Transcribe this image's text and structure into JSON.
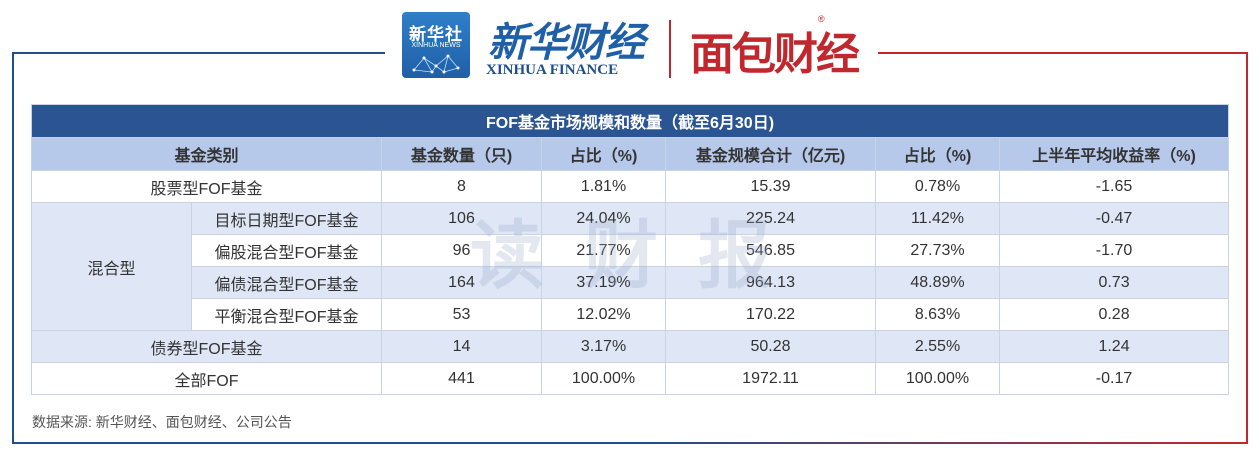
{
  "branding": {
    "xinhua_box_cn": "新华社",
    "xinhua_box_en": "XINHUA NEWS",
    "xinhua_finance_cn": "新华财经",
    "xinhua_finance_en": "XINHUA FINANCE",
    "mianbao_cn": "面包财经",
    "mianbao_reg": "®",
    "watermark": "读财报"
  },
  "colors": {
    "title_bg": "#2b5592",
    "header_bg": "#b7c9ea",
    "row_alt_bg": "#dfe7f6",
    "frame_blue": "#1f4e8c",
    "frame_red": "#c0282d"
  },
  "chart_data": {
    "type": "table",
    "title": "FOF基金市场规模和数量（截至6月30日)",
    "columns": [
      "基金类别",
      "基金数量（只)",
      "占比（%)",
      "基金规模合计（亿元)",
      "占比（%)",
      "上半年平均收益率（%)"
    ],
    "rows": [
      {
        "category": "股票型FOF基金",
        "count": "8",
        "count_pct": "1.81%",
        "scale": "15.39",
        "scale_pct": "0.78%",
        "return": "-1.65"
      },
      {
        "group": "混合型",
        "category": "目标日期型FOF基金",
        "count": "106",
        "count_pct": "24.04%",
        "scale": "225.24",
        "scale_pct": "11.42%",
        "return": "-0.47"
      },
      {
        "group": "混合型",
        "category": "偏股混合型FOF基金",
        "count": "96",
        "count_pct": "21.77%",
        "scale": "546.85",
        "scale_pct": "27.73%",
        "return": "-1.70"
      },
      {
        "group": "混合型",
        "category": "偏债混合型FOF基金",
        "count": "164",
        "count_pct": "37.19%",
        "scale": "964.13",
        "scale_pct": "48.89%",
        "return": "0.73"
      },
      {
        "group": "混合型",
        "category": "平衡混合型FOF基金",
        "count": "53",
        "count_pct": "12.02%",
        "scale": "170.22",
        "scale_pct": "8.63%",
        "return": "0.28"
      },
      {
        "category": "债券型FOF基金",
        "count": "14",
        "count_pct": "3.17%",
        "scale": "50.28",
        "scale_pct": "2.55%",
        "return": "1.24"
      },
      {
        "category": "全部FOF",
        "count": "441",
        "count_pct": "100.00%",
        "scale": "1972.11",
        "scale_pct": "100.00%",
        "return": "-0.17"
      }
    ]
  },
  "source": "数据来源: 新华财经、面包财经、公司公告"
}
